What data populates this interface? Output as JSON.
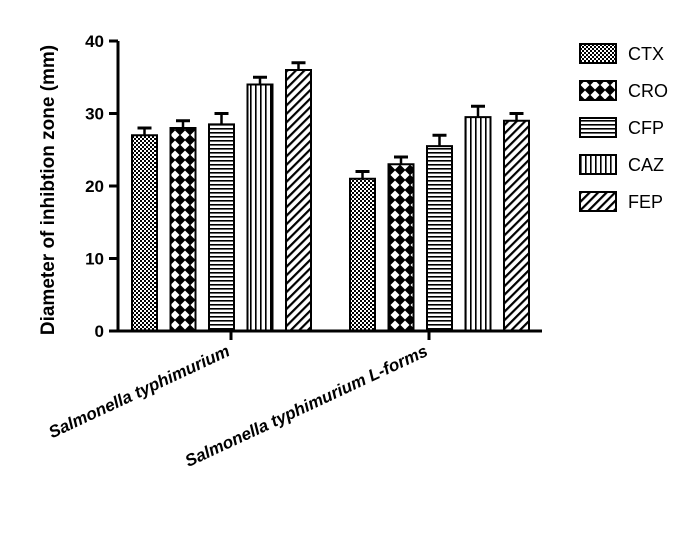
{
  "chart_data": {
    "type": "bar",
    "title": "",
    "xlabel": "",
    "ylabel": "Diameter of inhibtion zone (mm)",
    "ylim": [
      0,
      40
    ],
    "yticks": [
      0,
      10,
      20,
      30,
      40
    ],
    "categories": [
      "Salmonella typhimurium",
      "Salmonella typhimurium L-forms"
    ],
    "series": [
      {
        "name": "CTX",
        "values": [
          27.0,
          21.0
        ],
        "errors": [
          1.0,
          1.0
        ],
        "pattern": "checker"
      },
      {
        "name": "CRO",
        "values": [
          28.0,
          23.0
        ],
        "errors": [
          1.0,
          1.0
        ],
        "pattern": "diamond"
      },
      {
        "name": "CFP",
        "values": [
          28.5,
          25.5
        ],
        "errors": [
          1.5,
          1.5
        ],
        "pattern": "horizontal"
      },
      {
        "name": "CAZ",
        "values": [
          34.0,
          29.5
        ],
        "errors": [
          1.0,
          1.5
        ],
        "pattern": "vertical"
      },
      {
        "name": "FEP",
        "values": [
          36.0,
          29.0
        ],
        "errors": [
          1.0,
          1.0
        ],
        "pattern": "diagonal"
      }
    ],
    "legend_position": "right",
    "grid": false
  }
}
